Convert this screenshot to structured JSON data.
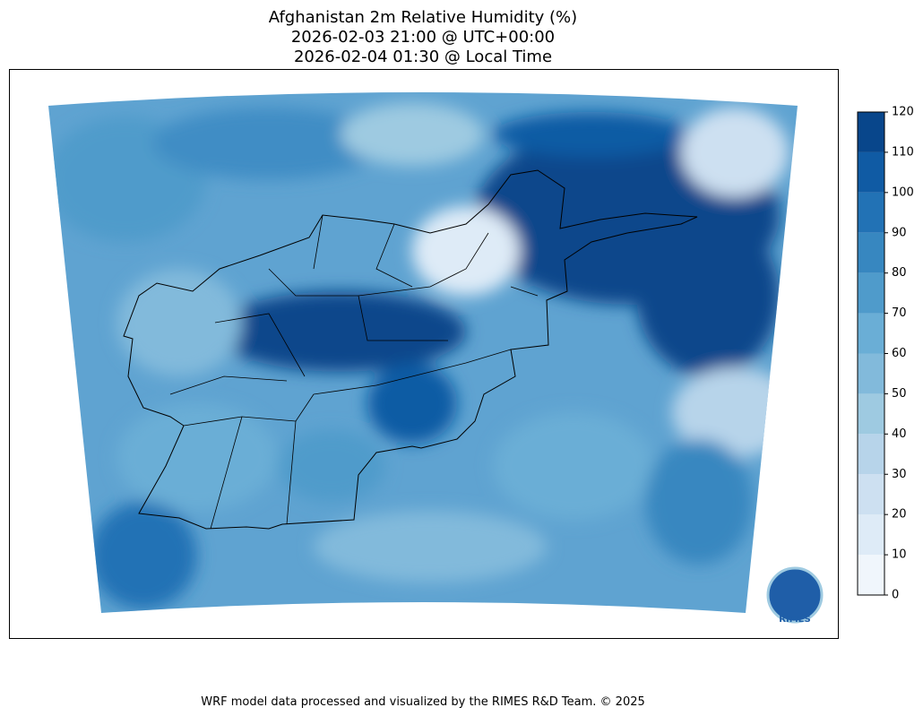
{
  "title": [
    "Afghanistan 2m Relative Humidity (%)",
    "2026-02-03 21:00 @ UTC+00:00",
    "2026-02-04 01:30 @ Local Time"
  ],
  "colorbar": {
    "ticks": [
      0,
      10,
      20,
      30,
      40,
      50,
      60,
      70,
      80,
      90,
      100,
      110,
      120
    ],
    "colors": [
      "#f0f6fc",
      "#deebf7",
      "#cde0f1",
      "#b7d4ea",
      "#9ecae1",
      "#82badb",
      "#6aaed6",
      "#4f9bcb",
      "#3787c0",
      "#2272b5",
      "#105ba4",
      "#08468b"
    ]
  },
  "logo": "RIMES",
  "footer": "WRF model data processed and visualized by the RIMES R&D Team. © 2025"
}
